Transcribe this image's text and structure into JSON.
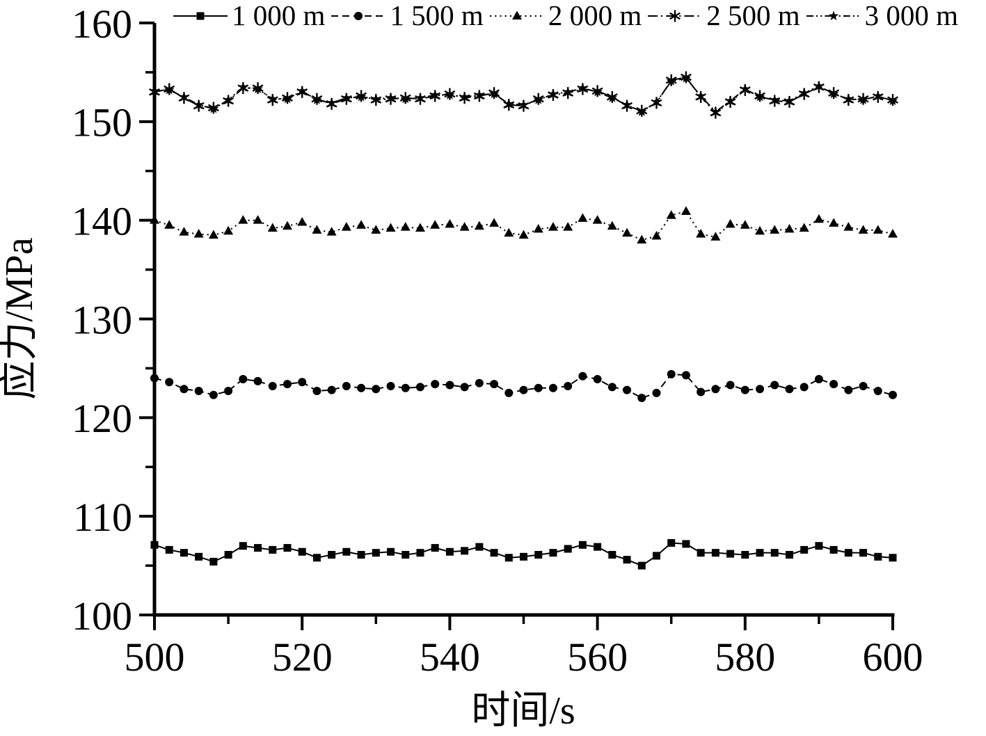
{
  "figure": {
    "background_color": "#ffffff",
    "foreground_color": "#000000"
  },
  "chart_data": {
    "type": "line",
    "title": "",
    "xlabel": "时间/s",
    "ylabel": "应力/MPa",
    "xlim": [
      500,
      600
    ],
    "ylim": [
      100,
      160
    ],
    "x_ticks": [
      500,
      520,
      540,
      560,
      580,
      600
    ],
    "x_minor_ticks": [
      510,
      530,
      550,
      570,
      590
    ],
    "y_ticks": [
      100,
      110,
      120,
      130,
      140,
      150,
      160
    ],
    "y_minor_ticks": [
      105,
      115,
      125,
      135,
      145,
      155
    ],
    "grid": false,
    "legend_position": "top",
    "x": [
      500,
      502,
      504,
      506,
      508,
      510,
      512,
      514,
      516,
      518,
      520,
      522,
      524,
      526,
      528,
      530,
      532,
      534,
      536,
      538,
      540,
      542,
      544,
      546,
      548,
      550,
      552,
      554,
      556,
      558,
      560,
      562,
      564,
      566,
      568,
      570,
      572,
      574,
      576,
      578,
      580,
      582,
      584,
      586,
      588,
      590,
      592,
      594,
      596,
      598,
      600
    ],
    "series": [
      {
        "name": "1 000 m",
        "marker": "square",
        "line": "solid",
        "color": "#000000",
        "values": [
          107.1,
          106.6,
          106.3,
          105.9,
          105.4,
          106.1,
          107.0,
          106.8,
          106.6,
          106.8,
          106.4,
          105.8,
          106.1,
          106.4,
          106.1,
          106.3,
          106.4,
          106.1,
          106.3,
          106.8,
          106.4,
          106.5,
          106.9,
          106.3,
          105.8,
          105.9,
          106.1,
          106.3,
          106.7,
          107.1,
          106.9,
          106.1,
          105.6,
          105.0,
          106.0,
          107.3,
          107.2,
          106.3,
          106.3,
          106.2,
          106.1,
          106.3,
          106.3,
          106.1,
          106.6,
          107.0,
          106.6,
          106.3,
          106.3,
          105.9,
          105.8
        ]
      },
      {
        "name": "1 500 m",
        "marker": "circle",
        "line": "dashed",
        "color": "#000000",
        "values": [
          124.0,
          123.6,
          122.9,
          122.7,
          122.3,
          122.7,
          123.9,
          123.7,
          123.2,
          123.4,
          123.6,
          122.7,
          122.8,
          123.2,
          123.0,
          122.9,
          123.2,
          123.0,
          123.1,
          123.4,
          123.3,
          123.1,
          123.5,
          123.4,
          122.5,
          122.8,
          123.0,
          123.0,
          123.2,
          124.2,
          123.9,
          123.1,
          122.8,
          122.0,
          122.5,
          124.4,
          124.3,
          122.6,
          122.9,
          123.3,
          122.8,
          122.9,
          123.3,
          122.9,
          123.1,
          123.9,
          123.4,
          122.8,
          123.2,
          122.7,
          122.3
        ]
      },
      {
        "name": "2 000 m",
        "marker": "triangle",
        "line": "dotted",
        "color": "#000000",
        "values": [
          140.0,
          139.5,
          138.8,
          138.6,
          138.5,
          138.9,
          140.0,
          140.0,
          139.2,
          139.4,
          139.8,
          139.0,
          138.8,
          139.3,
          139.5,
          139.0,
          139.2,
          139.3,
          139.2,
          139.5,
          139.6,
          139.3,
          139.4,
          139.7,
          138.7,
          138.5,
          139.1,
          139.3,
          139.3,
          140.2,
          140.0,
          139.4,
          138.7,
          138.0,
          138.4,
          140.5,
          140.9,
          138.6,
          138.3,
          139.6,
          139.5,
          138.9,
          139.0,
          139.1,
          139.2,
          140.1,
          139.7,
          139.3,
          139.0,
          139.0,
          138.6
        ]
      },
      {
        "name": "2 500 m",
        "marker": "asterisk",
        "line": "dashdot",
        "color": "#000000",
        "values": [
          153.0,
          153.3,
          152.4,
          151.6,
          151.4,
          152.1,
          153.4,
          153.4,
          152.2,
          152.4,
          153.0,
          152.3,
          151.8,
          152.3,
          152.6,
          152.2,
          152.3,
          152.4,
          152.3,
          152.6,
          152.8,
          152.4,
          152.6,
          152.9,
          151.7,
          151.6,
          152.3,
          152.7,
          152.9,
          153.3,
          153.1,
          152.5,
          151.6,
          151.1,
          151.9,
          154.2,
          154.5,
          152.5,
          150.9,
          152.0,
          153.2,
          152.6,
          152.1,
          152.0,
          152.8,
          153.5,
          152.9,
          152.2,
          152.3,
          152.5,
          152.2
        ]
      },
      {
        "name": "3 000 m",
        "marker": "star",
        "line": "dashdotdot",
        "color": "#000000",
        "values": [
          153.1,
          153.2,
          152.5,
          151.7,
          151.3,
          152.2,
          153.5,
          153.3,
          152.3,
          152.3,
          153.1,
          152.2,
          151.9,
          152.4,
          152.5,
          152.3,
          152.4,
          152.3,
          152.4,
          152.7,
          152.7,
          152.5,
          152.7,
          152.8,
          151.8,
          151.7,
          152.2,
          152.8,
          153.0,
          153.4,
          153.0,
          152.4,
          151.7,
          151.0,
          152.0,
          154.1,
          154.4,
          152.6,
          151.0,
          152.1,
          153.3,
          152.5,
          152.2,
          152.1,
          152.9,
          153.6,
          152.8,
          152.3,
          152.2,
          152.6,
          152.1
        ]
      }
    ]
  }
}
